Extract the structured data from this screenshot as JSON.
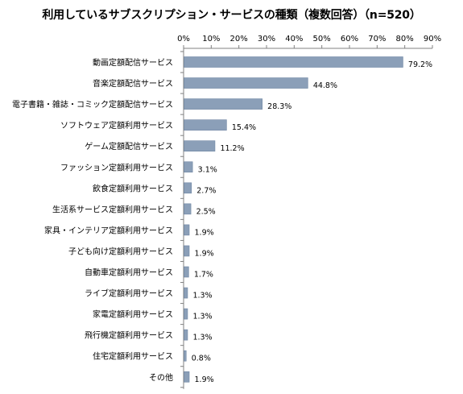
{
  "chart_data": {
    "type": "bar",
    "orientation": "horizontal",
    "title": "利用しているサブスクリプション・サービスの種類（複数回答）（n=520）",
    "categories": [
      "動画定額配信サービス",
      "音楽定額配信サービス",
      "電子書籍・雑誌・コミック定額配信サービス",
      "ソフトウェア定額利用サービス",
      "ゲーム定額配信サービス",
      "ファッション定額利用サービス",
      "飲食定額利用サービス",
      "生活系サービス定額利用サービス",
      "家具・インテリア定額利用サービス",
      "子ども向け定額利用サービス",
      "自動車定額利用サービス",
      "ライブ定額利用サービス",
      "家電定額利用サービス",
      "飛行機定額利用サービス",
      "住宅定額利用サービス",
      "その他"
    ],
    "values": [
      79.2,
      44.8,
      28.3,
      15.4,
      11.2,
      3.1,
      2.7,
      2.5,
      1.9,
      1.9,
      1.7,
      1.3,
      1.3,
      1.3,
      0.8,
      1.9
    ],
    "value_labels": [
      "79.2%",
      "44.8%",
      "28.3%",
      "15.4%",
      "11.2%",
      "3.1%",
      "2.7%",
      "2.5%",
      "1.9%",
      "1.9%",
      "1.7%",
      "1.3%",
      "1.3%",
      "1.3%",
      "0.8%",
      "1.9%"
    ],
    "xlim": [
      0,
      90
    ],
    "xticks": [
      0,
      10,
      20,
      30,
      40,
      50,
      60,
      70,
      80,
      90
    ],
    "xtick_labels": [
      "0%",
      "10%",
      "20%",
      "30%",
      "40%",
      "50%",
      "60%",
      "70%",
      "80%",
      "90%"
    ],
    "axis_position": "top",
    "grid": false,
    "legend": "none",
    "bar_color": "#8b9fb8",
    "bar_edge_color": "#6f86a3"
  }
}
